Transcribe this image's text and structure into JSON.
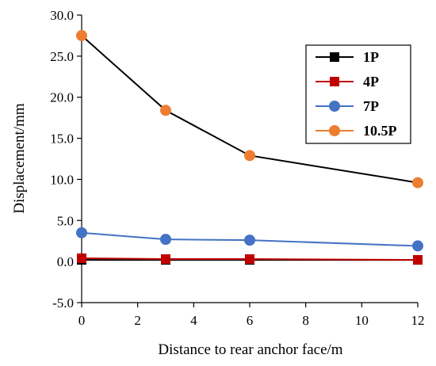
{
  "chart_data": {
    "type": "line",
    "title": "",
    "xlabel": "Distance to rear anchor face/m",
    "ylabel": "Displacement/mm",
    "xlim": [
      0,
      12
    ],
    "ylim": [
      -5,
      30
    ],
    "xticks": [
      0,
      2,
      4,
      6,
      8,
      10,
      12
    ],
    "yticks": [
      -5,
      0,
      5,
      10,
      15,
      20,
      25,
      30
    ],
    "xtick_labels": [
      "0",
      "2",
      "4",
      "6",
      "8",
      "10",
      "12"
    ],
    "ytick_labels": [
      "-5.0",
      "0.0",
      "5.0",
      "10.0",
      "15.0",
      "20.0",
      "25.0",
      "30.0"
    ],
    "grid": false,
    "legend_position": "top-right",
    "series": [
      {
        "name": "1P",
        "marker": "square",
        "color": "#000000",
        "x": [
          0,
          3,
          6,
          12
        ],
        "y": [
          0.2,
          0.2,
          0.2,
          0.2
        ]
      },
      {
        "name": "4P",
        "marker": "square",
        "color": "#c00000",
        "x": [
          0,
          3,
          6,
          12
        ],
        "y": [
          0.4,
          0.3,
          0.3,
          0.2
        ]
      },
      {
        "name": "7P",
        "marker": "circle",
        "color": "#4472c4",
        "x": [
          0,
          3,
          6,
          12
        ],
        "y": [
          3.5,
          2.7,
          2.6,
          1.9
        ]
      },
      {
        "name": "10.5P",
        "marker": "circle",
        "color": "#ed7d31",
        "line_color": "#000000",
        "x": [
          0,
          3,
          6,
          12
        ],
        "y": [
          27.5,
          18.4,
          12.9,
          9.6
        ]
      }
    ]
  }
}
